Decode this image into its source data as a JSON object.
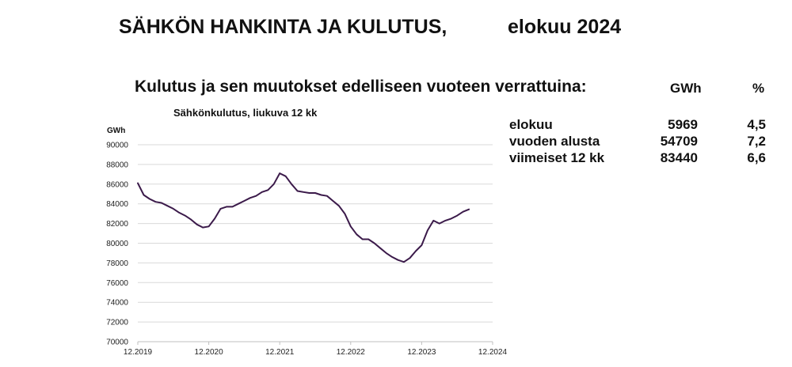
{
  "header": {
    "title": "SÄHKÖN HANKINTA JA KULUTUS,",
    "month": "elokuu 2024"
  },
  "section": {
    "subtitle": "Kulutus ja sen muutokset edelliseen vuoteen verrattuina:",
    "col_gwh": "GWh",
    "col_pct": "%"
  },
  "stats": [
    {
      "label": "elokuu",
      "gwh": "5969",
      "pct": "4,5"
    },
    {
      "label": "vuoden alusta",
      "gwh": "54709",
      "pct": "7,2"
    },
    {
      "label": "viimeiset 12 kk",
      "gwh": "83440",
      "pct": "6,6"
    }
  ],
  "chart_data": {
    "type": "line",
    "title": "Sähkönkulutus, liukuva 12 kk",
    "ylabel": "GWh",
    "xlabel": "",
    "ylim": [
      70000,
      90000
    ],
    "yticks": [
      70000,
      72000,
      74000,
      76000,
      78000,
      80000,
      82000,
      84000,
      86000,
      88000,
      90000
    ],
    "xticks": [
      "12.2019",
      "12.2020",
      "12.2021",
      "12.2022",
      "12.2023",
      "12.2024"
    ],
    "grid": "horizontal",
    "line_color": "#3b1a4a",
    "series": [
      {
        "values": [
          86100,
          84900,
          84500,
          84200,
          84100,
          83800,
          83500,
          83100,
          82800,
          82400,
          81900,
          81600,
          81700,
          82500,
          83500,
          83700,
          83700,
          84000,
          84300,
          84600,
          84800,
          85200,
          85400,
          86000,
          87100,
          86800,
          86000,
          85300,
          85200,
          85100,
          85100,
          84900,
          84800,
          84300,
          83800,
          83000,
          81700,
          80900,
          80400,
          80400,
          80000,
          79500,
          79000,
          78600,
          78300,
          78100,
          78500,
          79200,
          79800,
          81300,
          82300,
          82000,
          82300,
          82500,
          82800,
          83200,
          83440
        ]
      }
    ]
  }
}
